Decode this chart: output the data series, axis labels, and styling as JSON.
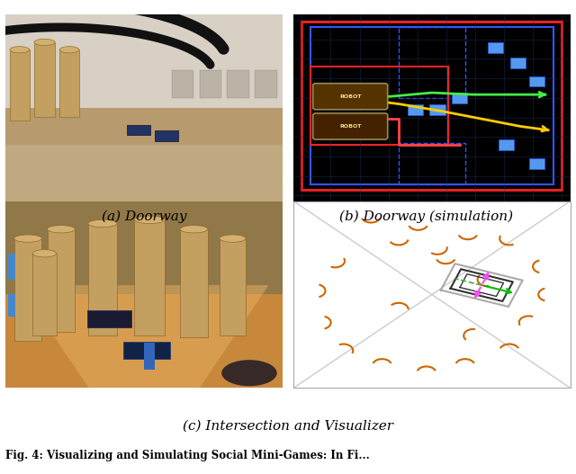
{
  "caption_a": "(a) Doorway",
  "caption_b": "(b) Doorway (simulation)",
  "caption_c": "(c) Intersection and Visualizer",
  "fig_caption": "Fig. 4: Visualizing and Simulating Social Mini-Games: In Fi...",
  "font_size_caption": 11,
  "font_size_figcaption": 9,
  "sim": {
    "bg": "#000000",
    "grid_color": "#1a2a5a",
    "red_border": "#ff2222",
    "blue_border": "#3355ff",
    "blue_sq_color": "#5599ee",
    "green_traj": "#44ee44",
    "yellow_traj": "#ffcc00",
    "red_traj": "#ff4444"
  },
  "viz": {
    "bg": "#ffffff",
    "border": "#aaaaaa",
    "diag": "#cccccc",
    "arc_color": "#cc6600",
    "outer_box": "#555555",
    "inner_box": "#333333",
    "outer_box2": "#aaaaaa",
    "arrow_green": "#00bb00",
    "arrow_pink": "#ff44ff",
    "arrow_green2": "#44aa44"
  }
}
